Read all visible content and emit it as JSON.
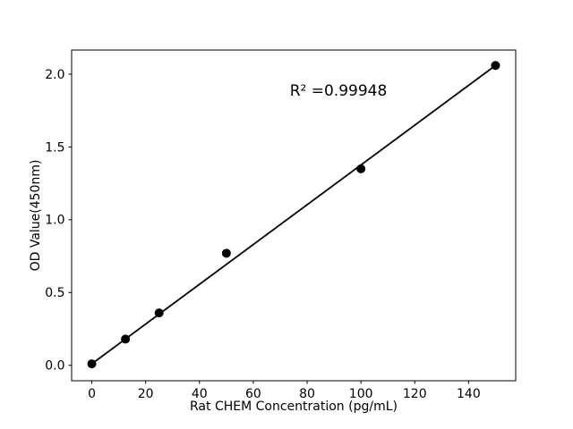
{
  "figure": {
    "background": "#ffffff",
    "foreground": "#000000"
  },
  "chart_data": {
    "type": "scatter",
    "title": "",
    "xlabel": "Rat CHEM Concentration (pg/mL)",
    "ylabel": "OD Value(450nm)",
    "annotation": "R² =0.99948",
    "x": [
      0,
      12.5,
      25,
      50,
      100,
      150
    ],
    "y": [
      0.01,
      0.18,
      0.36,
      0.77,
      1.35,
      2.06
    ],
    "fit_line": {
      "x1": 0,
      "y1": 0.01,
      "x2": 150,
      "y2": 2.06
    },
    "xticks": [
      0,
      20,
      40,
      60,
      80,
      100,
      120,
      140
    ],
    "yticks": [
      0.0,
      0.5,
      1.0,
      1.5,
      2.0
    ],
    "ytick_labels": [
      "0.0",
      "0.5",
      "1.0",
      "1.5",
      "2.0"
    ],
    "xlim": [
      -7.5,
      157.5
    ],
    "ylim": [
      -0.106,
      2.166
    ],
    "grid": false,
    "legend": false,
    "marker": "filled-circle",
    "marker_color": "#000000",
    "line_color": "#000000"
  }
}
